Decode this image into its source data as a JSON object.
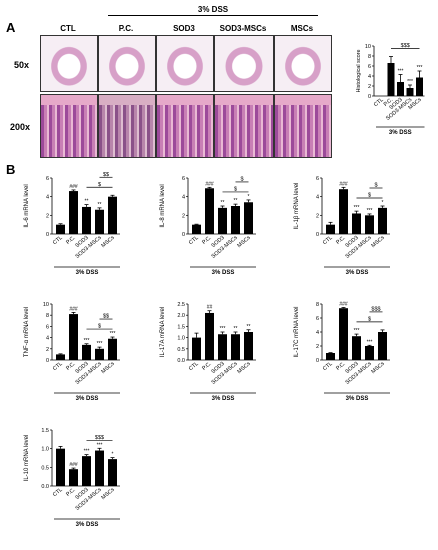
{
  "figure": {
    "panel_a": "A",
    "panel_b": "B",
    "treatment_top": "3% DSS",
    "mag_50": "50x",
    "mag_200": "200x",
    "groups": [
      "CTL",
      "P.C.",
      "SOD3",
      "SOD3-MSCs",
      "MSCs"
    ]
  },
  "chart_data": [
    {
      "id": "histo",
      "type": "bar",
      "categories": [
        "CTL",
        "P.C.",
        "SOD3",
        "SOD3-MSCs",
        "MSCs"
      ],
      "values": [
        0,
        6.6,
        2.8,
        1.6,
        3.7
      ],
      "errors": [
        0,
        1.3,
        1.5,
        0.6,
        1.3
      ],
      "marks": [
        "",
        "",
        "***",
        "***",
        "***"
      ],
      "ylabel": "Histological score",
      "ylim": [
        0,
        10
      ],
      "yticks": [
        "0",
        "2",
        "4",
        "6",
        "8",
        "10"
      ],
      "xgroup": "3% DSS",
      "brackets": [
        {
          "from": 1,
          "to": 4,
          "label": "$$$"
        }
      ]
    },
    {
      "id": "il6",
      "type": "bar",
      "categories": [
        "CTL",
        "P.C.",
        "SOD3",
        "SOD3-MSCs",
        "MSCs"
      ],
      "values": [
        1.0,
        4.6,
        2.9,
        2.6,
        4.0
      ],
      "errors": [
        0.1,
        0.12,
        0.25,
        0.2,
        0.15
      ],
      "marks": [
        "",
        "###",
        "**",
        "**",
        ""
      ],
      "ylabel": "IL-6 mRNA level",
      "ylim": [
        0,
        6
      ],
      "yticks": [
        "0",
        "2",
        "4",
        "6"
      ],
      "xgroup": "3% DSS",
      "brackets": [
        {
          "from": 2,
          "to": 4,
          "label": "$"
        },
        {
          "from": 3,
          "to": 4,
          "label": "$$"
        }
      ]
    },
    {
      "id": "il8",
      "type": "bar",
      "categories": [
        "CTL",
        "P.C.",
        "SOD3",
        "SOD3-MSCs",
        "MSCs"
      ],
      "values": [
        1.0,
        4.9,
        2.8,
        3.0,
        3.4
      ],
      "errors": [
        0.05,
        0.1,
        0.2,
        0.2,
        0.25
      ],
      "marks": [
        "",
        "###",
        "**",
        "**",
        "*"
      ],
      "ylabel": "IL-8 mRNA level",
      "ylim": [
        0,
        6
      ],
      "yticks": [
        "0",
        "2",
        "4",
        "6"
      ],
      "xgroup": "3% DSS",
      "brackets": [
        {
          "from": 2,
          "to": 4,
          "label": "$"
        },
        {
          "from": 3,
          "to": 4,
          "label": "$"
        }
      ]
    },
    {
      "id": "il1b",
      "type": "bar",
      "categories": [
        "CTL",
        "P.C.",
        "SOD3",
        "SOD3-MSCs",
        "MSCs"
      ],
      "values": [
        1.0,
        4.8,
        2.2,
        2.0,
        2.8
      ],
      "errors": [
        0.25,
        0.2,
        0.25,
        0.15,
        0.2
      ],
      "marks": [
        "",
        "###",
        "***",
        "***",
        "*"
      ],
      "ylabel": "IL-1β mRNA level",
      "ylim": [
        0,
        6
      ],
      "yticks": [
        "0",
        "2",
        "4",
        "6"
      ],
      "xgroup": "3% DSS",
      "brackets": [
        {
          "from": 2,
          "to": 4,
          "label": "$"
        },
        {
          "from": 3,
          "to": 4,
          "label": "$"
        }
      ]
    },
    {
      "id": "tnfa",
      "type": "bar",
      "categories": [
        "CTL",
        "P.C.",
        "SOD3",
        "SOD3-MSCs",
        "MSCs"
      ],
      "values": [
        1.0,
        8.2,
        2.7,
        2.0,
        3.8
      ],
      "errors": [
        0.1,
        0.3,
        0.2,
        0.3,
        0.3
      ],
      "marks": [
        "",
        "###",
        "***",
        "***",
        "***"
      ],
      "ylabel": "TNF-α mRNA level",
      "ylim": [
        0,
        10
      ],
      "yticks": [
        "0",
        "2",
        "4",
        "6",
        "8",
        "10"
      ],
      "xgroup": "3% DSS",
      "brackets": [
        {
          "from": 2,
          "to": 4,
          "label": "$"
        },
        {
          "from": 3,
          "to": 4,
          "label": "$$"
        }
      ]
    },
    {
      "id": "il17a",
      "type": "bar",
      "categories": [
        "CTL",
        "P.C.",
        "SOD3",
        "SOD3-MSCs",
        "MSCs"
      ],
      "values": [
        1.0,
        2.1,
        1.15,
        1.15,
        1.25
      ],
      "errors": [
        0.2,
        0.1,
        0.1,
        0.1,
        0.1
      ],
      "marks": [
        "",
        "##",
        "***",
        "**",
        "**"
      ],
      "ylabel": "IL-17A mRNA level",
      "ylim": [
        0,
        2.5
      ],
      "yticks": [
        "0.0",
        "0.5",
        "1.0",
        "1.5",
        "2.0",
        "2.5"
      ],
      "xgroup": "3% DSS",
      "brackets": []
    },
    {
      "id": "il17c",
      "type": "bar",
      "categories": [
        "CTL",
        "P.C.",
        "SOD3",
        "SOD3-MSCs",
        "MSCs"
      ],
      "values": [
        1.0,
        7.4,
        3.4,
        2.0,
        4.0
      ],
      "errors": [
        0.05,
        0.1,
        0.3,
        0.1,
        0.3
      ],
      "marks": [
        "",
        "###",
        "***",
        "***",
        ""
      ],
      "ylabel": "IL-17C mRNA level",
      "ylim": [
        0,
        8
      ],
      "yticks": [
        "0",
        "2",
        "4",
        "6",
        "8"
      ],
      "xgroup": "3% DSS",
      "brackets": [
        {
          "from": 2,
          "to": 4,
          "label": "$"
        },
        {
          "from": 3,
          "to": 4,
          "label": "$$$"
        }
      ]
    },
    {
      "id": "il10",
      "type": "bar",
      "categories": [
        "CTL",
        "P.C.",
        "SOD3",
        "SOD3-MSCs",
        "MSCs"
      ],
      "values": [
        1.0,
        0.45,
        0.8,
        0.95,
        0.72
      ],
      "errors": [
        0.06,
        0.03,
        0.04,
        0.06,
        0.04
      ],
      "marks": [
        "",
        "###",
        "***",
        "***",
        "*"
      ],
      "ylabel": "IL-10 mRNA level",
      "ylim": [
        0,
        1.5
      ],
      "yticks": [
        "0.0",
        "0.5",
        "1.0",
        "1.5"
      ],
      "xgroup": "3% DSS",
      "brackets": [
        {
          "from": 2,
          "to": 4,
          "label": "$$$"
        }
      ]
    }
  ]
}
